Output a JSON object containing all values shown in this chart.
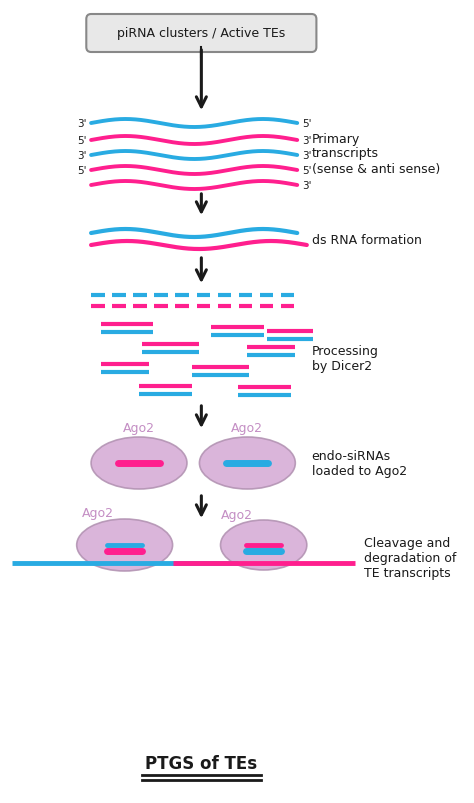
{
  "bg_color": "#ffffff",
  "blue": "#29ABE2",
  "pink": "#FF1F8E",
  "purple_fill": "#D4A8D4",
  "purple_text": "#C48EC4",
  "arrow_color": "#1a1a1a",
  "box_color": "#d0d0d0",
  "text_color": "#1a1a1a",
  "title": "PTGS of TEs",
  "label_primary": "Primary\ntranscripts\n(sense & anti sense)",
  "label_dsrna": "ds RNA formation",
  "label_dicer": "Processing\nby Dicer2",
  "label_ago2load": "endo-siRNAs\nloaded to Ago2",
  "label_cleavage": "Cleavage and\ndegradation of\nTE transcripts",
  "box_text": "piRNA clusters / Active TEs"
}
